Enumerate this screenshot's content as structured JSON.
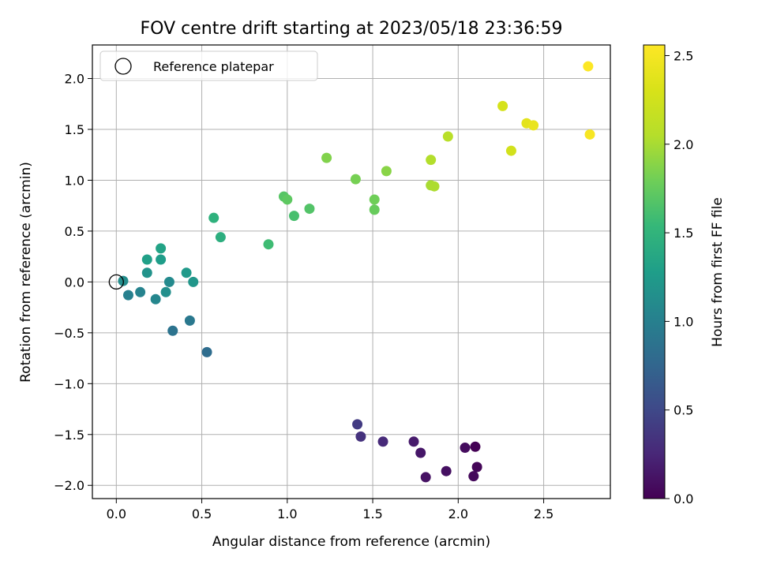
{
  "chart_data": {
    "type": "scatter",
    "title": "FOV centre drift starting at 2023/05/18 23:36:59",
    "xlabel": "Angular distance from reference (arcmin)",
    "ylabel": "Rotation from reference (arcmin)",
    "xlim": [
      -0.14,
      2.89
    ],
    "ylim": [
      -2.13,
      2.33
    ],
    "xticks": [
      "0.0",
      "0.5",
      "1.0",
      "1.5",
      "2.0",
      "2.5"
    ],
    "xtick_values": [
      0.0,
      0.5,
      1.0,
      1.5,
      2.0,
      2.5
    ],
    "yticks": [
      "−2.0",
      "−1.5",
      "−1.0",
      "−0.5",
      "0.0",
      "0.5",
      "1.0",
      "1.5",
      "2.0"
    ],
    "ytick_values": [
      -2.0,
      -1.5,
      -1.0,
      -0.5,
      0.0,
      0.5,
      1.0,
      1.5,
      2.0
    ],
    "grid": true,
    "legend": {
      "placement": "upper-left",
      "entries": [
        "Reference platepar"
      ]
    },
    "reference_point": {
      "x": 0.0,
      "y": 0.0
    },
    "colorbar": {
      "label": "Hours from first FF file",
      "colormap": "viridis",
      "range": [
        0.0,
        2.56
      ],
      "ticks": [
        "0.0",
        "0.5",
        "1.0",
        "1.5",
        "2.0",
        "2.5"
      ],
      "tick_values": [
        0.0,
        0.5,
        1.0,
        1.5,
        2.0,
        2.5
      ]
    },
    "points": [
      {
        "x": 2.1,
        "y": -1.62,
        "hours": 0.0
      },
      {
        "x": 2.11,
        "y": -1.82,
        "hours": 0.03
      },
      {
        "x": 2.09,
        "y": -1.91,
        "hours": 0.05
      },
      {
        "x": 2.04,
        "y": -1.63,
        "hours": 0.07
      },
      {
        "x": 1.93,
        "y": -1.86,
        "hours": 0.09
      },
      {
        "x": 1.81,
        "y": -1.92,
        "hours": 0.11
      },
      {
        "x": 1.78,
        "y": -1.68,
        "hours": 0.14
      },
      {
        "x": 1.74,
        "y": -1.57,
        "hours": 0.17
      },
      {
        "x": 1.56,
        "y": -1.57,
        "hours": 0.27
      },
      {
        "x": 1.43,
        "y": -1.52,
        "hours": 0.33
      },
      {
        "x": 1.41,
        "y": -1.4,
        "hours": 0.4
      },
      {
        "x": 0.53,
        "y": -0.69,
        "hours": 0.82
      },
      {
        "x": 0.33,
        "y": -0.48,
        "hours": 0.88
      },
      {
        "x": 0.43,
        "y": -0.38,
        "hours": 0.93
      },
      {
        "x": 0.07,
        "y": -0.13,
        "hours": 1.0
      },
      {
        "x": 0.14,
        "y": -0.1,
        "hours": 1.03
      },
      {
        "x": 0.23,
        "y": -0.17,
        "hours": 1.06
      },
      {
        "x": 0.31,
        "y": 0.0,
        "hours": 1.1
      },
      {
        "x": 0.04,
        "y": 0.01,
        "hours": 1.12
      },
      {
        "x": 0.29,
        "y": -0.1,
        "hours": 1.14
      },
      {
        "x": 0.18,
        "y": 0.09,
        "hours": 1.18
      },
      {
        "x": 0.45,
        "y": 0.0,
        "hours": 1.21
      },
      {
        "x": 0.41,
        "y": 0.09,
        "hours": 1.24
      },
      {
        "x": 0.26,
        "y": 0.22,
        "hours": 1.27
      },
      {
        "x": 0.18,
        "y": 0.22,
        "hours": 1.3
      },
      {
        "x": 0.26,
        "y": 0.33,
        "hours": 1.33
      },
      {
        "x": 0.61,
        "y": 0.44,
        "hours": 1.44
      },
      {
        "x": 0.57,
        "y": 0.63,
        "hours": 1.47
      },
      {
        "x": 0.89,
        "y": 0.37,
        "hours": 1.58
      },
      {
        "x": 1.04,
        "y": 0.65,
        "hours": 1.62
      },
      {
        "x": 1.13,
        "y": 0.72,
        "hours": 1.67
      },
      {
        "x": 0.98,
        "y": 0.84,
        "hours": 1.69
      },
      {
        "x": 1.0,
        "y": 0.81,
        "hours": 1.72
      },
      {
        "x": 1.51,
        "y": 0.71,
        "hours": 1.76
      },
      {
        "x": 1.51,
        "y": 0.81,
        "hours": 1.79
      },
      {
        "x": 1.4,
        "y": 1.01,
        "hours": 1.82
      },
      {
        "x": 1.23,
        "y": 1.22,
        "hours": 1.86
      },
      {
        "x": 1.58,
        "y": 1.09,
        "hours": 1.89
      },
      {
        "x": 1.84,
        "y": 0.95,
        "hours": 2.0
      },
      {
        "x": 1.86,
        "y": 0.94,
        "hours": 2.02
      },
      {
        "x": 1.84,
        "y": 1.2,
        "hours": 2.04
      },
      {
        "x": 1.94,
        "y": 1.43,
        "hours": 2.08
      },
      {
        "x": 2.31,
        "y": 1.29,
        "hours": 2.26
      },
      {
        "x": 2.26,
        "y": 1.73,
        "hours": 2.28
      },
      {
        "x": 2.4,
        "y": 1.56,
        "hours": 2.38
      },
      {
        "x": 2.44,
        "y": 1.54,
        "hours": 2.42
      },
      {
        "x": 2.77,
        "y": 1.45,
        "hours": 2.52
      },
      {
        "x": 2.76,
        "y": 2.12,
        "hours": 2.55
      }
    ]
  }
}
